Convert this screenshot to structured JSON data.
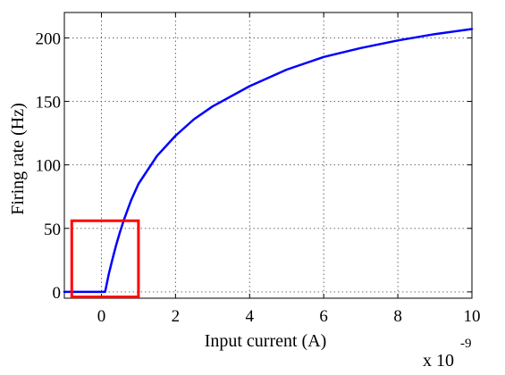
{
  "chart_data": {
    "type": "line",
    "title": "",
    "xlabel": "Input current (A)",
    "ylabel": "Firing rate (Hz)",
    "x_multiplier_label": "x 10",
    "x_multiplier_exponent": "-9",
    "xlim": [
      -1,
      10
    ],
    "ylim": [
      -5,
      220
    ],
    "xticks": [
      0,
      2,
      4,
      6,
      8,
      10
    ],
    "xtick_labels": [
      "0",
      "2",
      "4",
      "6",
      "8",
      "10"
    ],
    "yticks": [
      0,
      50,
      100,
      150,
      200
    ],
    "ytick_labels": [
      "0",
      "50",
      "100",
      "150",
      "200"
    ],
    "grid": true,
    "series": [
      {
        "color": "#0000ff",
        "x": [
          -1,
          0,
          0.1,
          0.2,
          0.3,
          0.4,
          0.5,
          0.6,
          0.8,
          1.0,
          1.5,
          2,
          2.5,
          3,
          4,
          5,
          6,
          7,
          8,
          9,
          10
        ],
        "y": [
          0,
          0,
          0,
          14,
          26,
          37,
          47,
          56,
          72,
          85,
          107,
          123,
          136,
          146,
          162,
          175,
          185,
          192,
          198,
          203,
          207
        ]
      }
    ],
    "annotation_box": {
      "color": "#ff0000",
      "x_range": [
        -0.8,
        1.0
      ],
      "y_range": [
        -4,
        56
      ]
    }
  }
}
